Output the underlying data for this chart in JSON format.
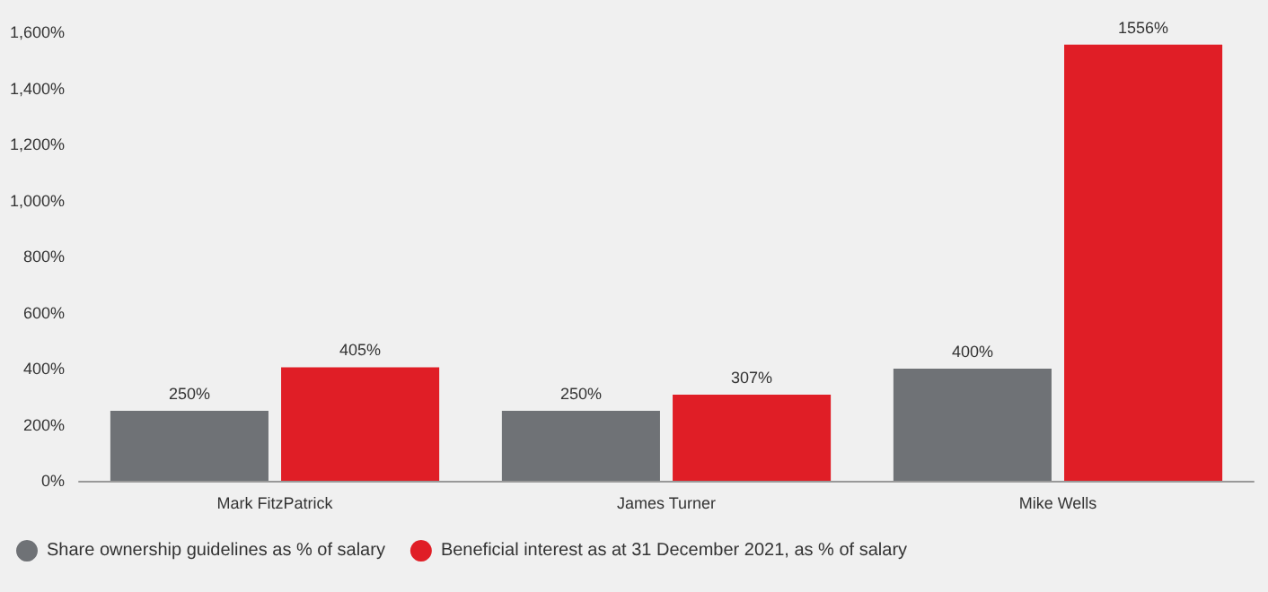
{
  "chart_data": {
    "type": "bar",
    "categories": [
      "Mark FitzPatrick",
      "James Turner",
      "Mike Wells"
    ],
    "series": [
      {
        "name": "Share ownership guidelines as % of salary",
        "color": "#6f7276",
        "values": [
          250,
          250,
          400
        ],
        "value_labels": [
          "250%",
          "250%",
          "400%"
        ]
      },
      {
        "name": "Beneficial interest as at 31 December 2021, as % of salary",
        "color": "#e01e26",
        "values": [
          405,
          307,
          1556
        ],
        "value_labels": [
          "405%",
          "307%",
          "1556%"
        ]
      }
    ],
    "ylim": [
      0,
      1600
    ],
    "yticks": [
      {
        "value": 0,
        "label": "0%"
      },
      {
        "value": 200,
        "label": "200%"
      },
      {
        "value": 400,
        "label": "400%"
      },
      {
        "value": 600,
        "label": "600%"
      },
      {
        "value": 800,
        "label": "800%"
      },
      {
        "value": 1000,
        "label": "1,000%"
      },
      {
        "value": 1200,
        "label": "1,200%"
      },
      {
        "value": 1400,
        "label": "1,400%"
      },
      {
        "value": 1600,
        "label": "1,600%"
      }
    ],
    "grid": false,
    "legend": "bottom left"
  }
}
